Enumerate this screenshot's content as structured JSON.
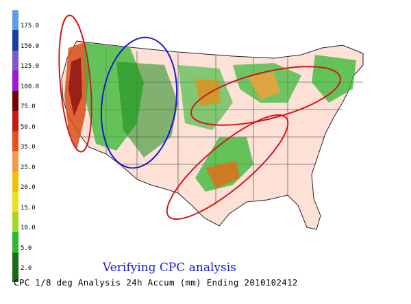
{
  "legend": {
    "levels": [
      {
        "label": "175.0",
        "color": "#5aa0e6"
      },
      {
        "label": "150.0",
        "color": "#1a3fa0"
      },
      {
        "label": "125.0",
        "color": "#7a5acb"
      },
      {
        "label": "100.0",
        "color": "#9a1ad2"
      },
      {
        "label": "75.0",
        "color": "#7a0000"
      },
      {
        "label": "50.0",
        "color": "#c81a12"
      },
      {
        "label": "35.0",
        "color": "#e4501a"
      },
      {
        "label": "25.0",
        "color": "#f09a4a"
      },
      {
        "label": "20.0",
        "color": "#f0c010"
      },
      {
        "label": "15.0",
        "color": "#e8e020"
      },
      {
        "label": "10.0",
        "color": "#a0d828"
      },
      {
        "label": "5.0",
        "color": "#30b830"
      },
      {
        "label": "2.0",
        "color": "#1a6a1a"
      }
    ]
  },
  "caption": "Verifying CPC analysis",
  "footer": "CPC 1/8 deg Analysis 24h Accum (mm) Ending 2010102412",
  "highlight_colors": {
    "red": "#d01818",
    "blue": "#1818d0"
  }
}
